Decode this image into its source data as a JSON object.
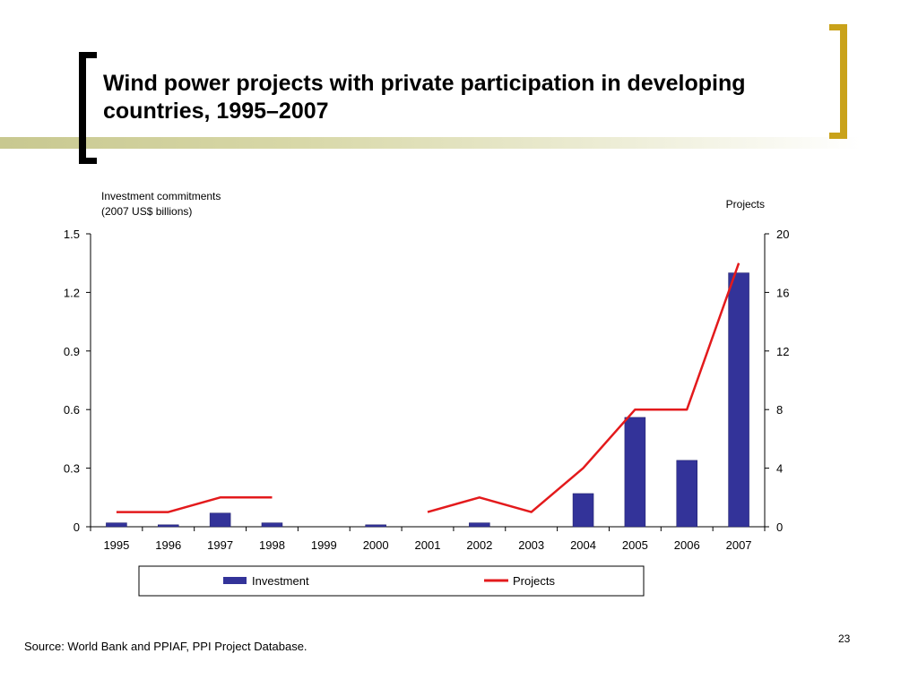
{
  "slide": {
    "title": "Wind power projects with private participation in developing countries, 1995–2007",
    "source": "Source: World Bank and PPIAF, PPI Project Database.",
    "page_number": "23",
    "accent_color": "#c9a21a"
  },
  "chart_data": {
    "type": "bar",
    "title": "",
    "categories": [
      "1995",
      "1996",
      "1997",
      "1998",
      "1999",
      "2000",
      "2001",
      "2002",
      "2003",
      "2004",
      "2005",
      "2006",
      "2007"
    ],
    "y_left": {
      "label_line1": "Investment commitments",
      "label_line2": "(2007 US$ billions)",
      "ylim": [
        0,
        1.5
      ],
      "ticks": [
        "0",
        "0.3",
        "0.6",
        "0.9",
        "1.2",
        "1.5"
      ]
    },
    "y_right": {
      "label": "Projects",
      "ylim": [
        0,
        20
      ],
      "ticks": [
        "0",
        "4",
        "8",
        "12",
        "16",
        "20"
      ]
    },
    "series": [
      {
        "name": "Investment",
        "type": "bar",
        "axis": "left",
        "color": "#333399",
        "values": [
          0.02,
          0.01,
          0.07,
          0.02,
          0,
          0.01,
          0,
          0.02,
          0,
          0.17,
          0.56,
          0.34,
          1.3
        ]
      },
      {
        "name": "Projects",
        "type": "line",
        "axis": "right",
        "color": "#e31a1c",
        "values": [
          1,
          1,
          2,
          2,
          null,
          null,
          1,
          2,
          1,
          4,
          8,
          8,
          18
        ]
      }
    ],
    "grid": false,
    "legend": "bottom"
  }
}
